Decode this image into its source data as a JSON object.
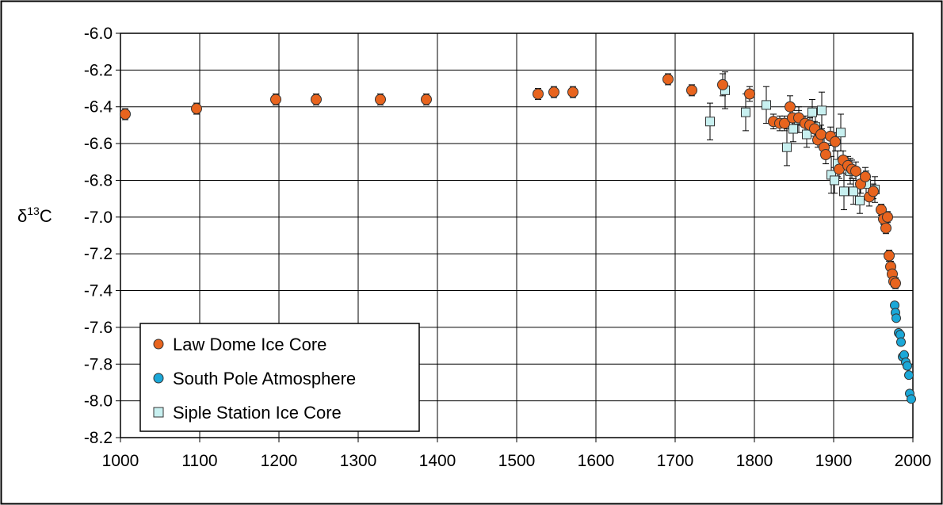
{
  "chart_data": {
    "type": "scatter",
    "title": "",
    "xlabel": "",
    "ylabel": "δ13C",
    "ylabel_parts": {
      "base": "δ",
      "sup": "13",
      "tail": "C"
    },
    "xlim": [
      1000,
      2000
    ],
    "ylim": [
      -8.2,
      -6.0
    ],
    "xticks": [
      1000,
      1100,
      1200,
      1300,
      1400,
      1500,
      1600,
      1700,
      1800,
      1900,
      2000
    ],
    "xtick_labels": [
      "1000",
      "1100",
      "1200",
      "1300",
      "1400",
      "1500",
      "1600",
      "1700",
      "1800",
      "1900",
      "2000"
    ],
    "yticks": [
      -6.0,
      -6.2,
      -6.4,
      -6.6,
      -6.8,
      -7.0,
      -7.2,
      -7.4,
      -7.6,
      -7.8,
      -8.0,
      -8.2
    ],
    "ytick_labels": [
      "-6.0",
      "-6.2",
      "-6.4",
      "-6.6",
      "-6.8",
      "-7.0",
      "-7.2",
      "-7.4",
      "-7.6",
      "-7.8",
      "-8.0",
      "-8.2"
    ],
    "grid": true,
    "legend_position": "bottom-left",
    "series": [
      {
        "name": "Law Dome Ice Core",
        "marker": "circle",
        "color": "#E8641E",
        "points": [
          {
            "x": 1006,
            "y": -6.44,
            "err": 0.03
          },
          {
            "x": 1096,
            "y": -6.41,
            "err": 0.03
          },
          {
            "x": 1196,
            "y": -6.36,
            "err": 0.03
          },
          {
            "x": 1247,
            "y": -6.36,
            "err": 0.03
          },
          {
            "x": 1328,
            "y": -6.36,
            "err": 0.03
          },
          {
            "x": 1386,
            "y": -6.36,
            "err": 0.03
          },
          {
            "x": 1527,
            "y": -6.33,
            "err": 0.03
          },
          {
            "x": 1547,
            "y": -6.32,
            "err": 0.03
          },
          {
            "x": 1571,
            "y": -6.32,
            "err": 0.03
          },
          {
            "x": 1691,
            "y": -6.25,
            "err": 0.03
          },
          {
            "x": 1721,
            "y": -6.31,
            "err": 0.03
          },
          {
            "x": 1760,
            "y": -6.28,
            "err": 0.06
          },
          {
            "x": 1794,
            "y": -6.33,
            "err": 0.04
          },
          {
            "x": 1824,
            "y": -6.48,
            "err": 0.04
          },
          {
            "x": 1832,
            "y": -6.49,
            "err": 0.04
          },
          {
            "x": 1838,
            "y": -6.49,
            "err": 0.04
          },
          {
            "x": 1845,
            "y": -6.4,
            "err": 0.06
          },
          {
            "x": 1848,
            "y": -6.46,
            "err": 0.04
          },
          {
            "x": 1856,
            "y": -6.46,
            "err": 0.04
          },
          {
            "x": 1864,
            "y": -6.49,
            "err": 0.04
          },
          {
            "x": 1870,
            "y": -6.5,
            "err": 0.04
          },
          {
            "x": 1876,
            "y": -6.52,
            "err": 0.04
          },
          {
            "x": 1880,
            "y": -6.58,
            "err": 0.04
          },
          {
            "x": 1884,
            "y": -6.55,
            "err": 0.05
          },
          {
            "x": 1888,
            "y": -6.62,
            "err": 0.05
          },
          {
            "x": 1890,
            "y": -6.66,
            "err": 0.05
          },
          {
            "x": 1896,
            "y": -6.56,
            "err": 0.05
          },
          {
            "x": 1902,
            "y": -6.59,
            "err": 0.05
          },
          {
            "x": 1907,
            "y": -6.74,
            "err": 0.05
          },
          {
            "x": 1912,
            "y": -6.69,
            "err": 0.05
          },
          {
            "x": 1918,
            "y": -6.72,
            "err": 0.05
          },
          {
            "x": 1923,
            "y": -6.74,
            "err": 0.05
          },
          {
            "x": 1928,
            "y": -6.75,
            "err": 0.05
          },
          {
            "x": 1934,
            "y": -6.82,
            "err": 0.05
          },
          {
            "x": 1940,
            "y": -6.78,
            "err": 0.05
          },
          {
            "x": 1945,
            "y": -6.89,
            "err": 0.05
          },
          {
            "x": 1950,
            "y": -6.86,
            "err": 0.04
          },
          {
            "x": 1960,
            "y": -6.96,
            "err": 0.03
          },
          {
            "x": 1963,
            "y": -7.01,
            "err": 0.03
          },
          {
            "x": 1966,
            "y": -7.06,
            "err": 0.03
          },
          {
            "x": 1968,
            "y": -7.0,
            "err": 0.03
          },
          {
            "x": 1970,
            "y": -7.21,
            "err": 0.03
          },
          {
            "x": 1972,
            "y": -7.27,
            "err": 0.03
          },
          {
            "x": 1974,
            "y": -7.31,
            "err": 0.03
          },
          {
            "x": 1976,
            "y": -7.35,
            "err": 0.03
          },
          {
            "x": 1978,
            "y": -7.36,
            "err": 0.03
          }
        ]
      },
      {
        "name": "South Pole Atmosphere",
        "marker": "circle",
        "color": "#1BA8D8",
        "points": [
          {
            "x": 1977,
            "y": -7.48
          },
          {
            "x": 1978,
            "y": -7.52
          },
          {
            "x": 1979,
            "y": -7.55
          },
          {
            "x": 1982,
            "y": -7.63
          },
          {
            "x": 1984,
            "y": -7.64
          },
          {
            "x": 1985,
            "y": -7.68
          },
          {
            "x": 1987,
            "y": -7.76
          },
          {
            "x": 1989,
            "y": -7.75
          },
          {
            "x": 1991,
            "y": -7.79
          },
          {
            "x": 1993,
            "y": -7.81
          },
          {
            "x": 1995,
            "y": -7.86
          },
          {
            "x": 1996,
            "y": -7.96
          },
          {
            "x": 1998,
            "y": -7.99
          }
        ]
      },
      {
        "name": "Siple Station Ice Core",
        "marker": "square",
        "color": "#C8F0F0",
        "points": [
          {
            "x": 1744,
            "y": -6.48,
            "err": 0.1
          },
          {
            "x": 1763,
            "y": -6.31,
            "err": 0.1
          },
          {
            "x": 1789,
            "y": -6.43,
            "err": 0.1
          },
          {
            "x": 1815,
            "y": -6.39,
            "err": 0.1
          },
          {
            "x": 1841,
            "y": -6.62,
            "err": 0.1
          },
          {
            "x": 1849,
            "y": -6.52,
            "err": 0.07
          },
          {
            "x": 1856,
            "y": -6.47,
            "err": 0.07
          },
          {
            "x": 1866,
            "y": -6.55,
            "err": 0.07
          },
          {
            "x": 1873,
            "y": -6.43,
            "err": 0.07
          },
          {
            "x": 1877,
            "y": -6.51,
            "err": 0.07
          },
          {
            "x": 1885,
            "y": -6.42,
            "err": 0.1
          },
          {
            "x": 1897,
            "y": -6.77,
            "err": 0.1
          },
          {
            "x": 1901,
            "y": -6.8,
            "err": 0.07
          },
          {
            "x": 1905,
            "y": -6.71,
            "err": 0.07
          },
          {
            "x": 1909,
            "y": -6.54,
            "err": 0.1
          },
          {
            "x": 1913,
            "y": -6.86,
            "err": 0.1
          },
          {
            "x": 1921,
            "y": -6.75,
            "err": 0.07
          },
          {
            "x": 1925,
            "y": -6.86,
            "err": 0.07
          },
          {
            "x": 1933,
            "y": -6.91,
            "err": 0.07
          },
          {
            "x": 1941,
            "y": -6.82,
            "err": 0.07
          },
          {
            "x": 1952,
            "y": -6.85,
            "err": 0.07
          }
        ]
      }
    ]
  }
}
